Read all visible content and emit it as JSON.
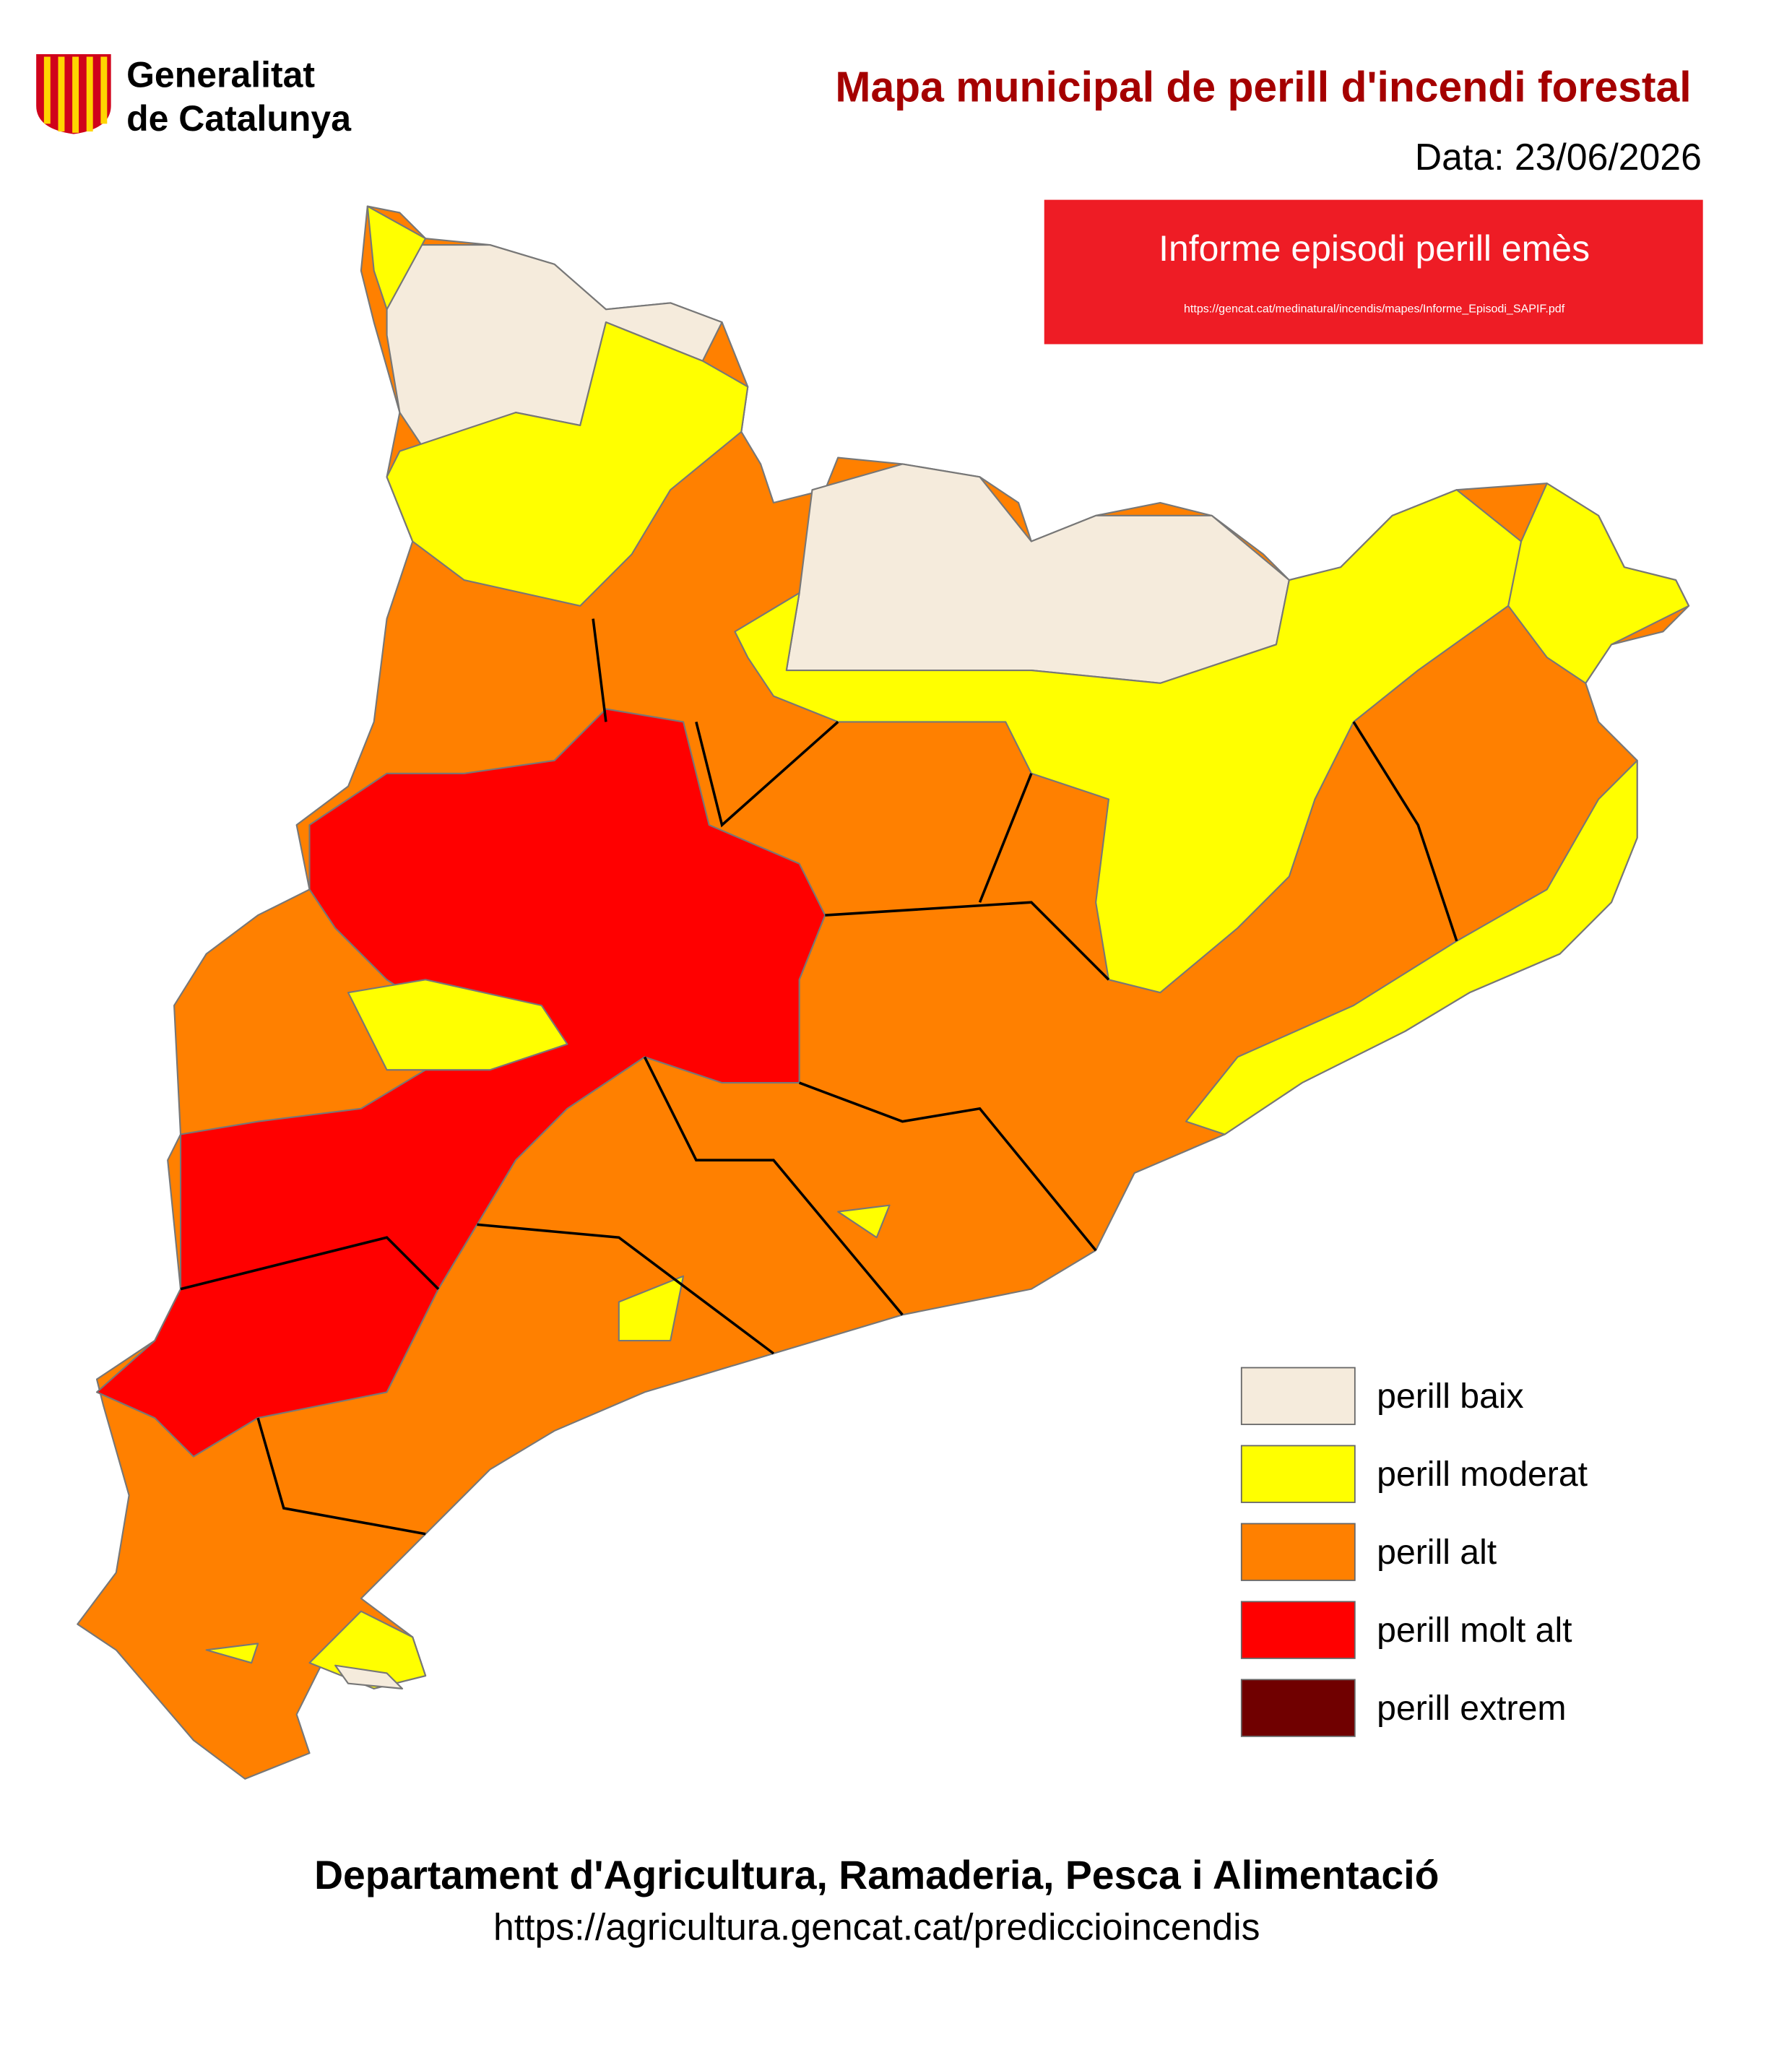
{
  "header": {
    "logo": [
      "Generalitat",
      "de Catalunya"
    ],
    "title": "Mapa municipal de perill d'incendi forestal",
    "date": "Data: 23/06/2026"
  },
  "banner": {
    "text": "Informe episodi perill emès",
    "url": "https://gencat.cat/medinatural/incendis/mapes/Informe_Episodi_SAPIF.pdf"
  },
  "legend": [
    {
      "label": "perill baix",
      "color": "#f5ebdc"
    },
    {
      "label": "perill moderat",
      "color": "#ffff00"
    },
    {
      "label": "perill alt",
      "color": "#ff8000"
    },
    {
      "label": "perill molt alt",
      "color": "#ff0000"
    },
    {
      "label": "perill extrem",
      "color": "#700000"
    }
  ],
  "footer": {
    "department": "Departament d'Agricultura, Ramaderia, Pesca i Alimentació",
    "url": "https://agricultura.gencat.cat/prediccioincendis"
  }
}
